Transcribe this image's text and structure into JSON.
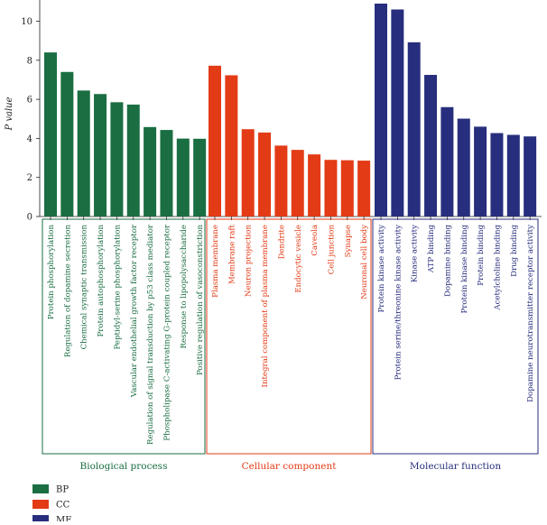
{
  "chart_data": {
    "type": "bar",
    "ylabel": "P value",
    "ylim": [
      0,
      10.9
    ],
    "yticks": [
      "0",
      "2",
      "4",
      "6",
      "8",
      "10"
    ],
    "groups": [
      {
        "key": "BP",
        "name": "Biological process",
        "color": "#1a6e42",
        "categories": [
          "Protein phosphorylation",
          "Regulation of dopamine secretion",
          "Chemical synaptic transmission",
          "Protein autophosphorylation",
          "Peptidyl-serine phosphorylation",
          "Vascular endothelial growth factor receptor",
          "Regulation of signal transduction by p53 class mediator",
          "Phospholipase C-activating G-protein coupled receptor",
          "Response to lipopolysaccharide",
          "Positive regulation of vasoconstriction"
        ],
        "values": [
          8.4,
          7.4,
          6.45,
          6.27,
          5.85,
          5.73,
          4.58,
          4.43,
          3.99,
          3.98
        ]
      },
      {
        "key": "CC",
        "name": "Cellular component",
        "color": "#e33b16",
        "categories": [
          "Plasma membrane",
          "Membrane raft",
          "Neuron projection",
          "Integral component of plasma membrane",
          "Dendrite",
          "Endocytic vesicle",
          "Caveola",
          "Cell junction",
          "Synapse",
          "Neuronal cell body"
        ],
        "values": [
          7.72,
          7.23,
          4.47,
          4.3,
          3.63,
          3.41,
          3.18,
          2.9,
          2.88,
          2.86
        ]
      },
      {
        "key": "MF",
        "name": "Molecular function",
        "color": "#272e7d",
        "categories": [
          "Protein kinase activity",
          "Protein serine/threonine kinase activity",
          "Kinase activity",
          "ATP binding",
          "Dopamine binding",
          "Protein kinase binding",
          "Protein binding",
          "Acetylcholine binding",
          "Drug binding",
          "Dopamine neurotransmitter receptor activity"
        ],
        "values": [
          10.9,
          10.6,
          8.92,
          7.25,
          5.6,
          5.01,
          4.6,
          4.27,
          4.18,
          4.1
        ]
      }
    ],
    "legend": [
      {
        "label": "BP",
        "color": "#1a6e42"
      },
      {
        "label": "CC",
        "color": "#e33b16"
      },
      {
        "label": "MF",
        "color": "#272e7d"
      }
    ]
  }
}
